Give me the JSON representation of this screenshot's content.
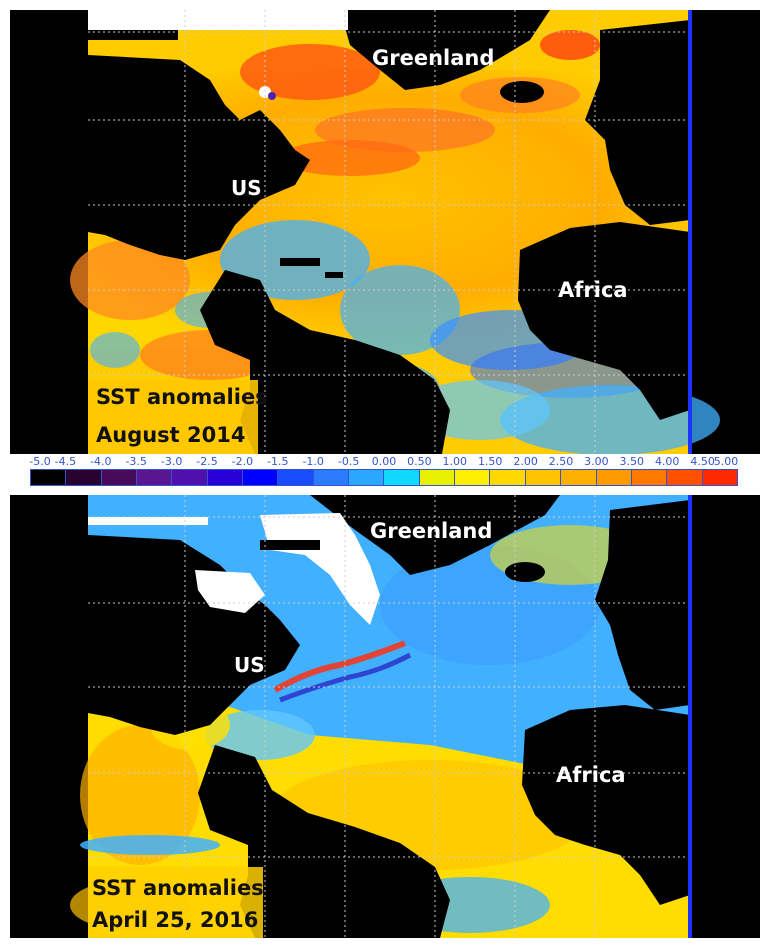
{
  "maps": [
    {
      "labels": {
        "greenland": "Greenland",
        "us": "US",
        "africa": "Africa"
      },
      "caption_line1": "SST anomalies",
      "caption_line2": "August 2014"
    },
    {
      "labels": {
        "greenland": "Greenland",
        "us": "US",
        "africa": "Africa"
      },
      "caption_line1": "SST anomalies",
      "caption_line2": "April 25, 2016"
    }
  ],
  "colorbar": {
    "ticks": [
      "-5.0",
      "-4.5",
      "-4.0",
      "-3.5",
      "-3.0",
      "-2.5",
      "-2.0",
      "-1.5",
      "-1.0",
      "-0.5",
      "0.00",
      "0.50",
      "1.00",
      "1.50",
      "2.00",
      "2.50",
      "3.00",
      "3.50",
      "4.00",
      "4.50",
      "5.00"
    ],
    "colors": [
      "#000000",
      "#2a0030",
      "#4a0a5a",
      "#5a1690",
      "#5010b0",
      "#2a00d8",
      "#0000ff",
      "#1a4cff",
      "#2c7cff",
      "#2aa8ff",
      "#10d8ff",
      "#e8f000",
      "#ffee00",
      "#ffd800",
      "#ffc400",
      "#ffb000",
      "#ff9a00",
      "#ff7800",
      "#ff5000",
      "#ff2a00"
    ]
  },
  "colors": {
    "land": "#000000",
    "ice": "#ffffff",
    "warm_anomaly": "#ffb000",
    "cool_anomaly": "#40b0ff",
    "grid": "#cccccc",
    "edge_line": "#1a33ff"
  }
}
